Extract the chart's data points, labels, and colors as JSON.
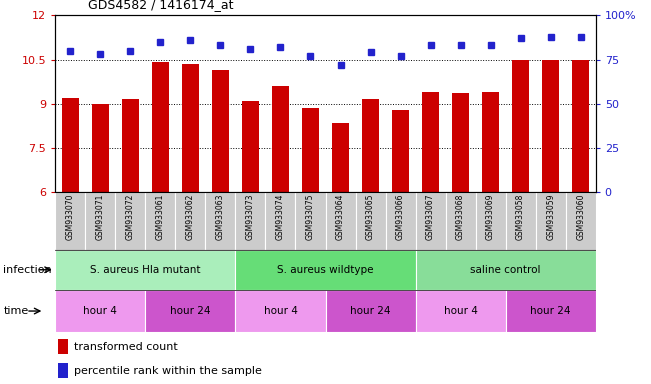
{
  "title": "GDS4582 / 1416174_at",
  "samples": [
    "GSM933070",
    "GSM933071",
    "GSM933072",
    "GSM933061",
    "GSM933062",
    "GSM933063",
    "GSM933073",
    "GSM933074",
    "GSM933075",
    "GSM933064",
    "GSM933065",
    "GSM933066",
    "GSM933067",
    "GSM933068",
    "GSM933069",
    "GSM933058",
    "GSM933059",
    "GSM933060"
  ],
  "bar_values": [
    9.2,
    9.0,
    9.15,
    10.4,
    10.35,
    10.15,
    9.1,
    9.6,
    8.85,
    8.35,
    9.15,
    8.8,
    9.4,
    9.35,
    9.4,
    10.5,
    10.5,
    10.5
  ],
  "dot_values": [
    80,
    78,
    80,
    85,
    86,
    83,
    81,
    82,
    77,
    72,
    79,
    77,
    83,
    83,
    83,
    87,
    88,
    88
  ],
  "ylim_left": [
    6,
    12
  ],
  "ylim_right": [
    0,
    100
  ],
  "yticks_left": [
    6,
    7.5,
    9,
    10.5,
    12
  ],
  "yticks_right": [
    0,
    25,
    50,
    75,
    100
  ],
  "grid_values": [
    7.5,
    9.0,
    10.5
  ],
  "bar_color": "#cc0000",
  "dot_color": "#2222cc",
  "infection_groups": [
    {
      "label": "S. aureus Hla mutant",
      "start": 0,
      "end": 6,
      "color": "#aaeebb"
    },
    {
      "label": "S. aureus wildtype",
      "start": 6,
      "end": 12,
      "color": "#66dd77"
    },
    {
      "label": "saline control",
      "start": 12,
      "end": 18,
      "color": "#88dd99"
    }
  ],
  "time_groups": [
    {
      "label": "hour 4",
      "start": 0,
      "end": 3,
      "color": "#ee99ee"
    },
    {
      "label": "hour 24",
      "start": 3,
      "end": 6,
      "color": "#cc55cc"
    },
    {
      "label": "hour 4",
      "start": 6,
      "end": 9,
      "color": "#ee99ee"
    },
    {
      "label": "hour 24",
      "start": 9,
      "end": 12,
      "color": "#cc55cc"
    },
    {
      "label": "hour 4",
      "start": 12,
      "end": 15,
      "color": "#ee99ee"
    },
    {
      "label": "hour 24",
      "start": 15,
      "end": 18,
      "color": "#cc55cc"
    }
  ],
  "legend_bar_label": "transformed count",
  "legend_dot_label": "percentile rank within the sample",
  "infection_label": "infection",
  "time_label": "time",
  "tick_label_bg": "#cccccc",
  "bar_width": 0.55
}
